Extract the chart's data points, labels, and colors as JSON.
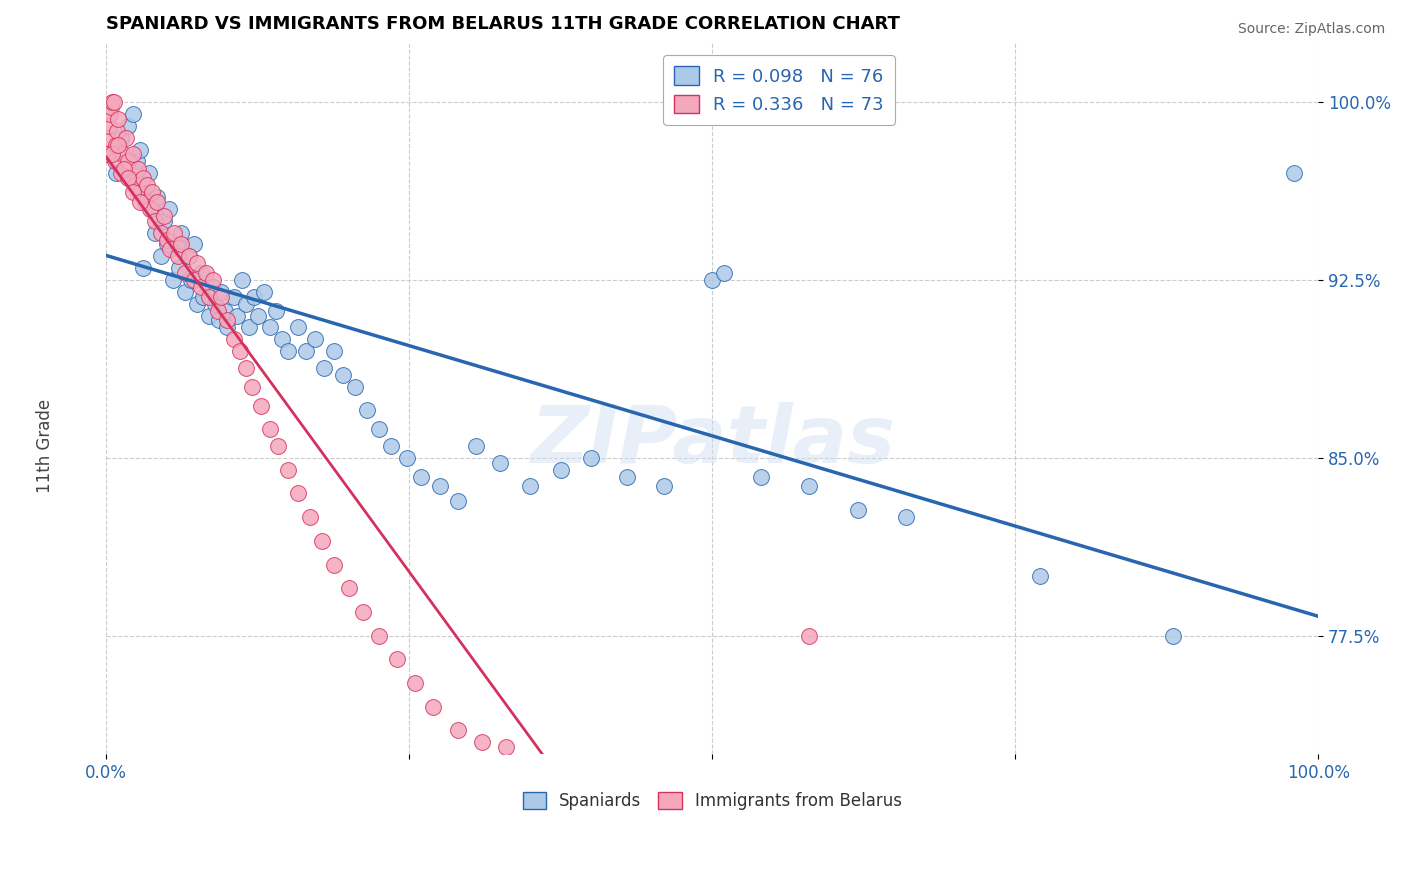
{
  "title": "SPANIARD VS IMMIGRANTS FROM BELARUS 11TH GRADE CORRELATION CHART",
  "source": "Source: ZipAtlas.com",
  "ylabel": "11th Grade",
  "xlim": [
    0.0,
    1.0
  ],
  "ylim": [
    0.725,
    1.025
  ],
  "yticks": [
    0.775,
    0.85,
    0.925,
    1.0
  ],
  "ytick_labels": [
    "77.5%",
    "85.0%",
    "92.5%",
    "100.0%"
  ],
  "R_spaniards": 0.098,
  "N_spaniards": 76,
  "R_belarus": 0.336,
  "N_belarus": 73,
  "legend_labels": [
    "Spaniards",
    "Immigrants from Belarus"
  ],
  "color_spaniards": "#adc9e8",
  "color_belarus": "#f4a8bc",
  "line_color_spaniards": "#2866b0",
  "line_color_belarus": "#d43060",
  "background_color": "#ffffff",
  "grid_color": "#cccccc",
  "title_color": "#000000",
  "axis_label_color": "#2866b0",
  "watermark_text": "ZIPatlas",
  "spaniards_x": [
    0.008,
    0.012,
    0.018,
    0.022,
    0.025,
    0.028,
    0.03,
    0.033,
    0.035,
    0.038,
    0.04,
    0.042,
    0.045,
    0.048,
    0.05,
    0.052,
    0.055,
    0.058,
    0.06,
    0.062,
    0.065,
    0.068,
    0.07,
    0.072,
    0.075,
    0.078,
    0.08,
    0.085,
    0.088,
    0.09,
    0.093,
    0.095,
    0.098,
    0.1,
    0.105,
    0.108,
    0.112,
    0.115,
    0.118,
    0.122,
    0.125,
    0.13,
    0.135,
    0.14,
    0.145,
    0.15,
    0.158,
    0.165,
    0.172,
    0.18,
    0.188,
    0.195,
    0.205,
    0.215,
    0.225,
    0.235,
    0.248,
    0.26,
    0.275,
    0.29,
    0.305,
    0.325,
    0.35,
    0.375,
    0.4,
    0.43,
    0.46,
    0.5,
    0.51,
    0.54,
    0.58,
    0.62,
    0.66,
    0.77,
    0.88,
    0.98
  ],
  "spaniards_y": [
    0.97,
    0.985,
    0.99,
    0.995,
    0.975,
    0.98,
    0.93,
    0.96,
    0.97,
    0.955,
    0.945,
    0.96,
    0.935,
    0.95,
    0.94,
    0.955,
    0.925,
    0.94,
    0.93,
    0.945,
    0.92,
    0.935,
    0.925,
    0.94,
    0.915,
    0.928,
    0.918,
    0.91,
    0.922,
    0.915,
    0.908,
    0.92,
    0.912,
    0.905,
    0.918,
    0.91,
    0.925,
    0.915,
    0.905,
    0.918,
    0.91,
    0.92,
    0.905,
    0.912,
    0.9,
    0.895,
    0.905,
    0.895,
    0.9,
    0.888,
    0.895,
    0.885,
    0.88,
    0.87,
    0.862,
    0.855,
    0.85,
    0.842,
    0.838,
    0.832,
    0.855,
    0.848,
    0.838,
    0.845,
    0.85,
    0.842,
    0.838,
    0.925,
    0.928,
    0.842,
    0.838,
    0.828,
    0.825,
    0.8,
    0.775,
    0.97
  ],
  "belarus_x": [
    0.0,
    0.001,
    0.002,
    0.003,
    0.004,
    0.005,
    0.006,
    0.007,
    0.008,
    0.009,
    0.01,
    0.012,
    0.014,
    0.016,
    0.018,
    0.02,
    0.022,
    0.024,
    0.026,
    0.028,
    0.03,
    0.032,
    0.034,
    0.036,
    0.038,
    0.04,
    0.042,
    0.045,
    0.048,
    0.05,
    0.053,
    0.056,
    0.059,
    0.062,
    0.065,
    0.068,
    0.072,
    0.075,
    0.078,
    0.082,
    0.085,
    0.088,
    0.092,
    0.095,
    0.1,
    0.105,
    0.11,
    0.115,
    0.12,
    0.128,
    0.135,
    0.142,
    0.15,
    0.158,
    0.168,
    0.178,
    0.188,
    0.2,
    0.212,
    0.225,
    0.24,
    0.255,
    0.27,
    0.29,
    0.31,
    0.33,
    0.005,
    0.01,
    0.015,
    0.018,
    0.022,
    0.028,
    0.58
  ],
  "belarus_y": [
    0.978,
    0.985,
    0.99,
    0.995,
    0.998,
    1.0,
    1.0,
    0.975,
    0.982,
    0.988,
    0.993,
    0.97,
    0.978,
    0.985,
    0.975,
    0.968,
    0.978,
    0.965,
    0.972,
    0.962,
    0.968,
    0.958,
    0.965,
    0.955,
    0.962,
    0.95,
    0.958,
    0.945,
    0.952,
    0.942,
    0.938,
    0.945,
    0.935,
    0.94,
    0.928,
    0.935,
    0.925,
    0.932,
    0.922,
    0.928,
    0.918,
    0.925,
    0.912,
    0.918,
    0.908,
    0.9,
    0.895,
    0.888,
    0.88,
    0.872,
    0.862,
    0.855,
    0.845,
    0.835,
    0.825,
    0.815,
    0.805,
    0.795,
    0.785,
    0.775,
    0.765,
    0.755,
    0.745,
    0.735,
    0.73,
    0.728,
    0.978,
    0.982,
    0.972,
    0.968,
    0.962,
    0.958,
    0.775
  ]
}
